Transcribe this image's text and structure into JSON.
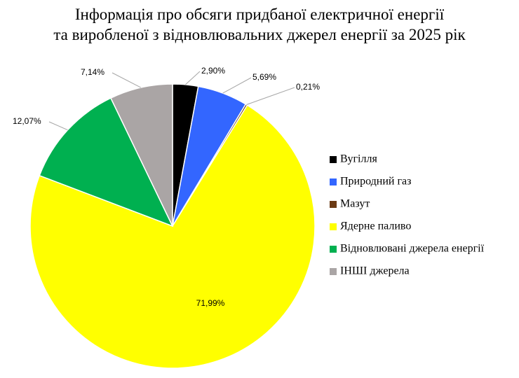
{
  "chart_data": {
    "type": "pie",
    "title_lines": [
      "Інформація про обсяги придбаної електричної енергії",
      "та виробленої з відновлювальних джерел енергії за 2025 рік"
    ],
    "slices": [
      {
        "name": "Вугілля",
        "value": 2.9,
        "label": "2,90%",
        "color": "#000000"
      },
      {
        "name": "Природний газ",
        "value": 5.69,
        "label": "5,69%",
        "color": "#3366ff"
      },
      {
        "name": "Мазут",
        "value": 0.21,
        "label": "0,21%",
        "color": "#6b3a14"
      },
      {
        "name": "Ядерне паливо",
        "value": 71.99,
        "label": "71,99%",
        "color": "#ffff00"
      },
      {
        "name": "Відновлювані джерела енергії",
        "value": 12.07,
        "label": "12,07%",
        "color": "#00b050"
      },
      {
        "name": "ІНШІ джерела",
        "value": 7.14,
        "label": "7,14%",
        "color": "#aaa5a5"
      }
    ],
    "legend_position": "right",
    "start_angle": "12 o'clock",
    "direction": "clockwise"
  }
}
